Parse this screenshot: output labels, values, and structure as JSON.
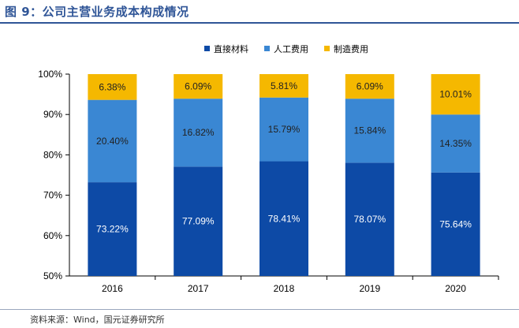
{
  "figure": {
    "title": "图 9：公司主营业务成本构成情况",
    "source": "资料来源：Wind，国元证券研究所"
  },
  "chart_data": {
    "type": "bar",
    "stacked": true,
    "normalized": true,
    "title": "",
    "xlabel": "",
    "ylabel": "",
    "categories": [
      "2016",
      "2017",
      "2018",
      "2019",
      "2020"
    ],
    "ylim": [
      50,
      100
    ],
    "yticks": [
      50,
      60,
      70,
      80,
      90,
      100
    ],
    "ytick_labels": [
      "50%",
      "60%",
      "70%",
      "80%",
      "90%",
      "100%"
    ],
    "legend_position": "top-center",
    "grid": false,
    "series": [
      {
        "name": "直接材料",
        "color": "#0d4aa6",
        "text_color": "#ffffff",
        "values": [
          73.22,
          77.09,
          78.41,
          78.07,
          75.64
        ],
        "labels": [
          "73.22%",
          "77.09%",
          "78.41%",
          "78.07%",
          "75.64%"
        ]
      },
      {
        "name": "人工费用",
        "color": "#3a87d3",
        "text_color": "#222222",
        "values": [
          20.4,
          16.82,
          15.79,
          15.84,
          14.35
        ],
        "labels": [
          "20.40%",
          "16.82%",
          "15.79%",
          "15.84%",
          "14.35%"
        ]
      },
      {
        "name": "制造费用",
        "color": "#f5b800",
        "text_color": "#222222",
        "values": [
          6.38,
          6.09,
          5.81,
          6.09,
          10.01
        ],
        "labels": [
          "6.38%",
          "6.09%",
          "5.81%",
          "6.09%",
          "10.01%"
        ]
      }
    ]
  }
}
